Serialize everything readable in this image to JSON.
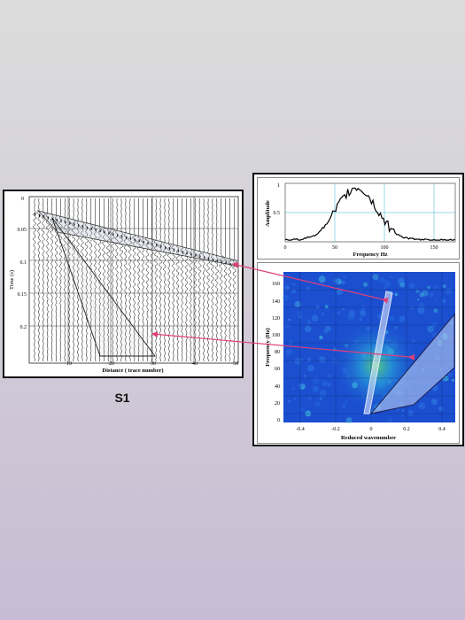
{
  "caption": "S1",
  "seismic": {
    "x_label": "Distance ( trace number)",
    "y_label": "Time (s)",
    "x_ticks": [
      "-10",
      "-20",
      "-30",
      "-40",
      "-50"
    ],
    "y_ticks": [
      "0",
      "0.05",
      "0.1",
      "0.15",
      "0.2"
    ]
  },
  "spectrum": {
    "x_label": "Frequency Hz",
    "y_label": "Amplitude",
    "x_ticks": [
      "0",
      "50",
      "100",
      "150"
    ],
    "y_ticks": [
      "1",
      "0.5"
    ]
  },
  "fk": {
    "x_label": "Reduced wavenumber",
    "y_label": "Frequency (Hz)",
    "x_ticks": [
      "-0.4",
      "-0.2",
      "0",
      "0.2",
      "0.4"
    ],
    "y_ticks": [
      "160",
      "140",
      "120",
      "100",
      "80",
      "60",
      "40",
      "20",
      "0"
    ]
  },
  "colors": {
    "arrow": "#e0407a",
    "fk_background": "#1b4fd0",
    "grid": "#3cb0d6"
  }
}
